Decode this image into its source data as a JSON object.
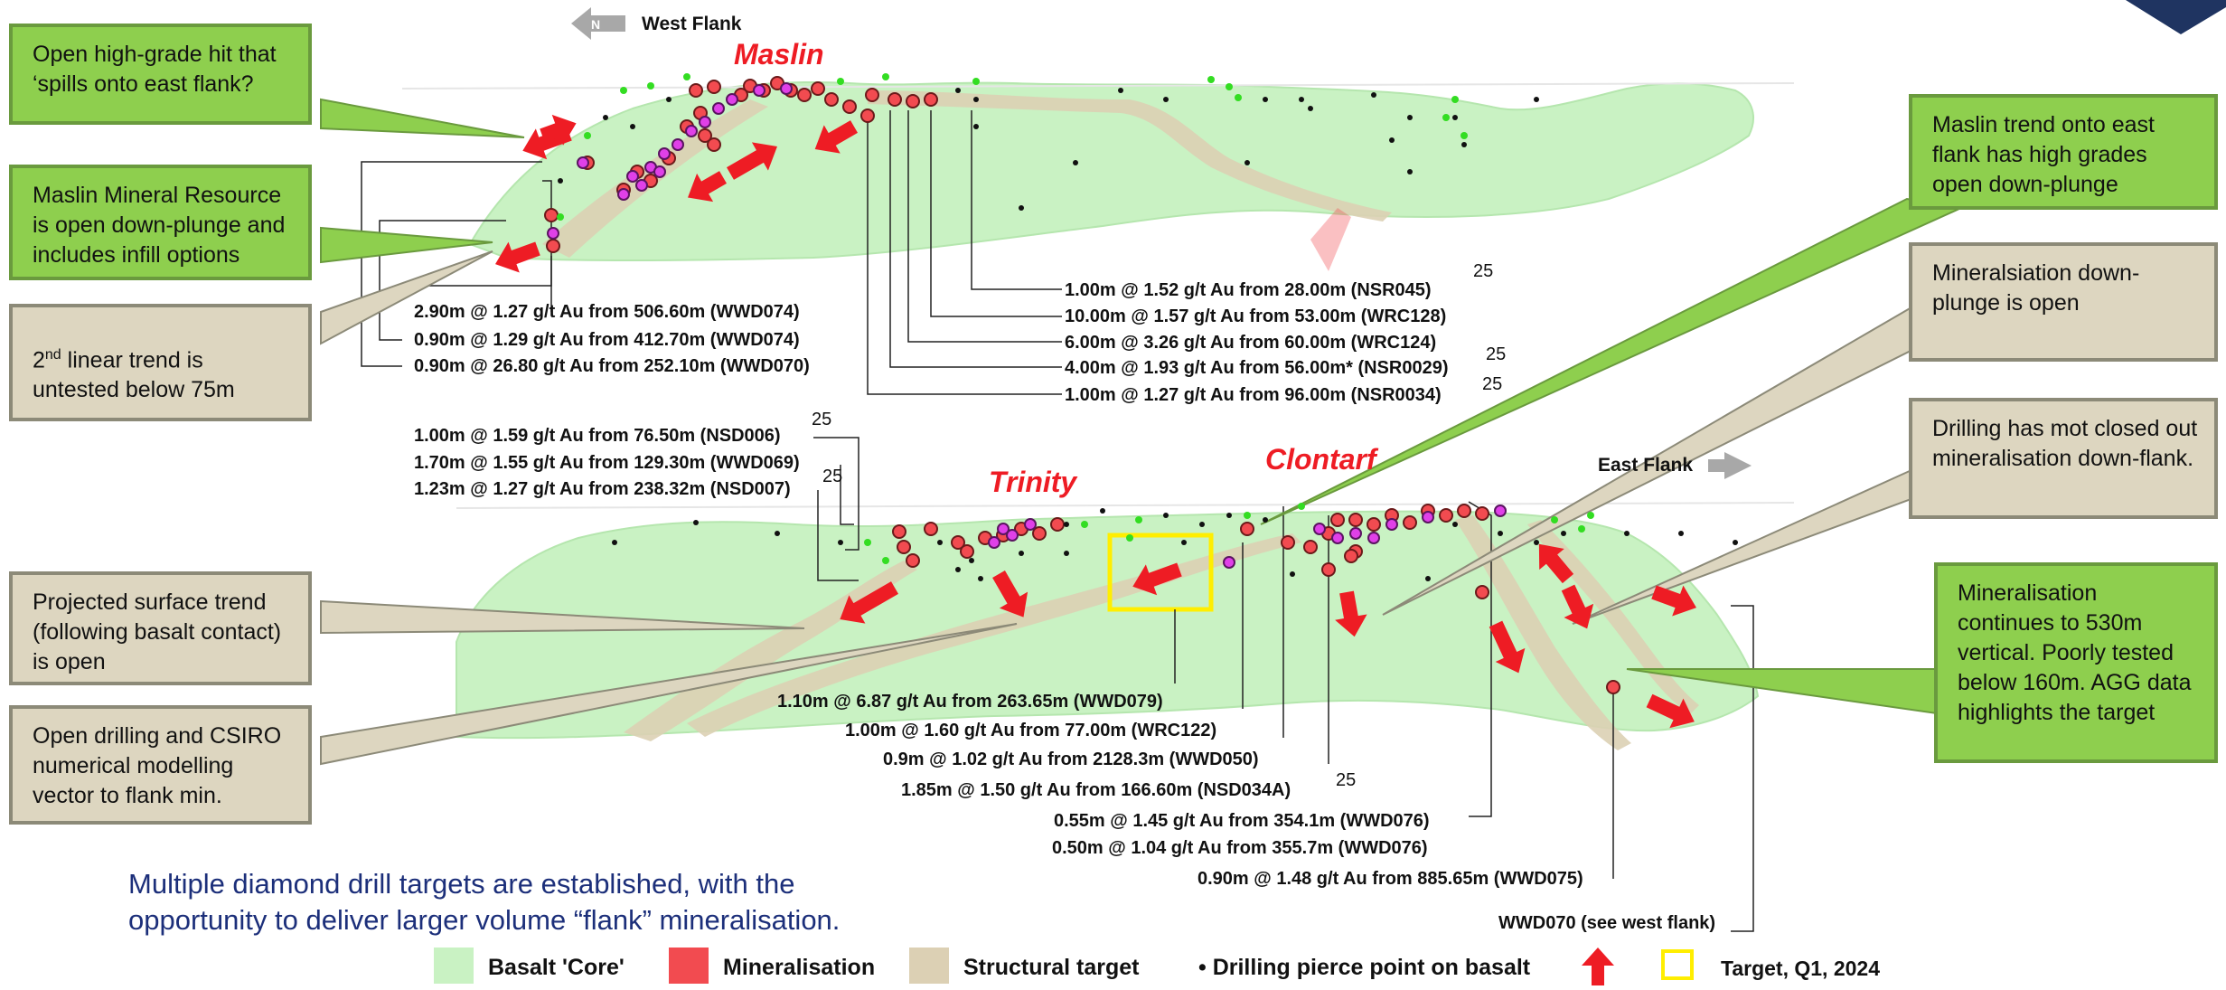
{
  "labels": {
    "west_flank": "West Flank",
    "east_flank": "East Flank",
    "north": "N",
    "maslin": "Maslin",
    "trinity": "Trinity",
    "clontarf": "Clontarf",
    "wwd070_note": "WWD070 (see  west flank)"
  },
  "callouts": {
    "open_high_grade": "Open high-grade hit that ‘spills onto east flank?",
    "maslin_resource": "Maslin Mineral Resource is open down-plunge and includes infill options",
    "linear_trend_pre": "2",
    "linear_trend_sup": "nd",
    "linear_trend_post": " linear trend is untested below 75m",
    "projected_surface": "Projected surface trend (following basalt contact) is open",
    "open_drilling": "Open drilling and CSIRO numerical modelling vector to flank min.",
    "maslin_trend_east": "Maslin trend onto east flank has high grades open down-plunge",
    "downplunge_open": "Mineralsiation down-plunge is open",
    "drilling_not_closed": "Drilling has mot closed out mineralisation down-flank.",
    "mineralisation_continues": "Mineralisation continues to 530m vertical. Poorly tested below 160m. AGG data highlights the target"
  },
  "intercepts_upper_left": [
    "2.90m @ 1.27 g/t Au from 506.60m (WWD074)",
    "0.90m @ 1.29 g/t Au from 412.70m (WWD074)",
    "0.90m @ 26.80 g/t Au from 252.10m (WWD070)"
  ],
  "intercepts_upper_right": [
    "1.00m @ 1.52 g/t Au from 28.00m (NSR045)",
    "10.00m @ 1.57 g/t Au from 53.00m (WRC128)",
    "6.00m @ 3.26 g/t Au from 60.00m (WRC124)",
    "4.00m @ 1.93 g/t Au from 56.00m* (NSR0029)",
    "1.00m @ 1.27 g/t Au from 96.00m (NSR0034)"
  ],
  "intercepts_lower_left": [
    "1.00m @ 1.59 g/t Au from 76.50m (NSD006)",
    "1.70m @ 1.55 g/t Au from 129.30m (WWD069)",
    "1.23m @ 1.27 g/t Au from 238.32m (NSD007)"
  ],
  "intercepts_lower": [
    "1.10m @ 6.87 g/t Au from 263.65m (WWD079)",
    "1.00m @ 1.60 g/t Au from 77.00m (WRC122)",
    "0.9m @ 1.02 g/t Au from 2128.3m (WWD050)",
    "1.85m @ 1.50 g/t Au from 166.60m (NSD034A)",
    "0.55m @ 1.45 g/t Au from 354.1m (WWD076)",
    "0.50m @ 1.04 g/t Au from 355.7m (WWD076)",
    "0.90m @ 1.48 g/t Au from 885.65m (WWD075)"
  ],
  "superscript": "25",
  "summary": {
    "line1": "Multiple diamond drill targets are established, with the",
    "line2": "opportunity to deliver larger volume “flank” mineralisation."
  },
  "legend": {
    "basalt": "Basalt 'Core'",
    "mineralisation": "Mineralisation",
    "structural": "Structural target",
    "pierce_point": "• Drilling pierce point on basalt",
    "target": "Target, Q1, 2024"
  },
  "colors": {
    "basalt": "#c9f2c3",
    "mineralisation": "#f24b50",
    "structural": "#dcd0b4",
    "callout_green": "#8ecf4e",
    "callout_tan": "#ddd6c0",
    "label_red": "#ee1c24",
    "summary_blue": "#1c2f7a",
    "target_yellow": "#ffee00",
    "navy": "#1f3461"
  }
}
